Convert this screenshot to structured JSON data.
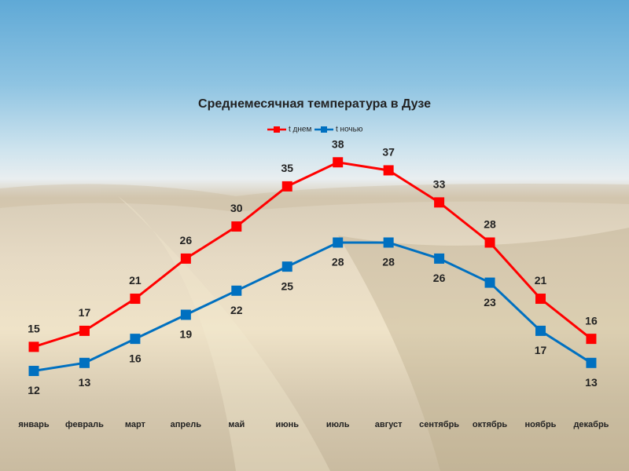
{
  "chart_data": {
    "type": "line",
    "title": "Среднемесячная температура в Дузе",
    "categories": [
      "январь",
      "февраль",
      "март",
      "апрель",
      "май",
      "июнь",
      "июль",
      "август",
      "сентябрь",
      "октябрь",
      "ноябрь",
      "декабрь"
    ],
    "series": [
      {
        "name": "t днем",
        "color": "#ff0000",
        "values": [
          15,
          17,
          21,
          26,
          30,
          35,
          38,
          37,
          33,
          28,
          21,
          16
        ]
      },
      {
        "name": "t ночью",
        "color": "#0070c0",
        "values": [
          12,
          13,
          16,
          19,
          22,
          25,
          28,
          28,
          26,
          23,
          17,
          13
        ]
      }
    ],
    "ylim": [
      0,
      40
    ],
    "legend": "top"
  }
}
